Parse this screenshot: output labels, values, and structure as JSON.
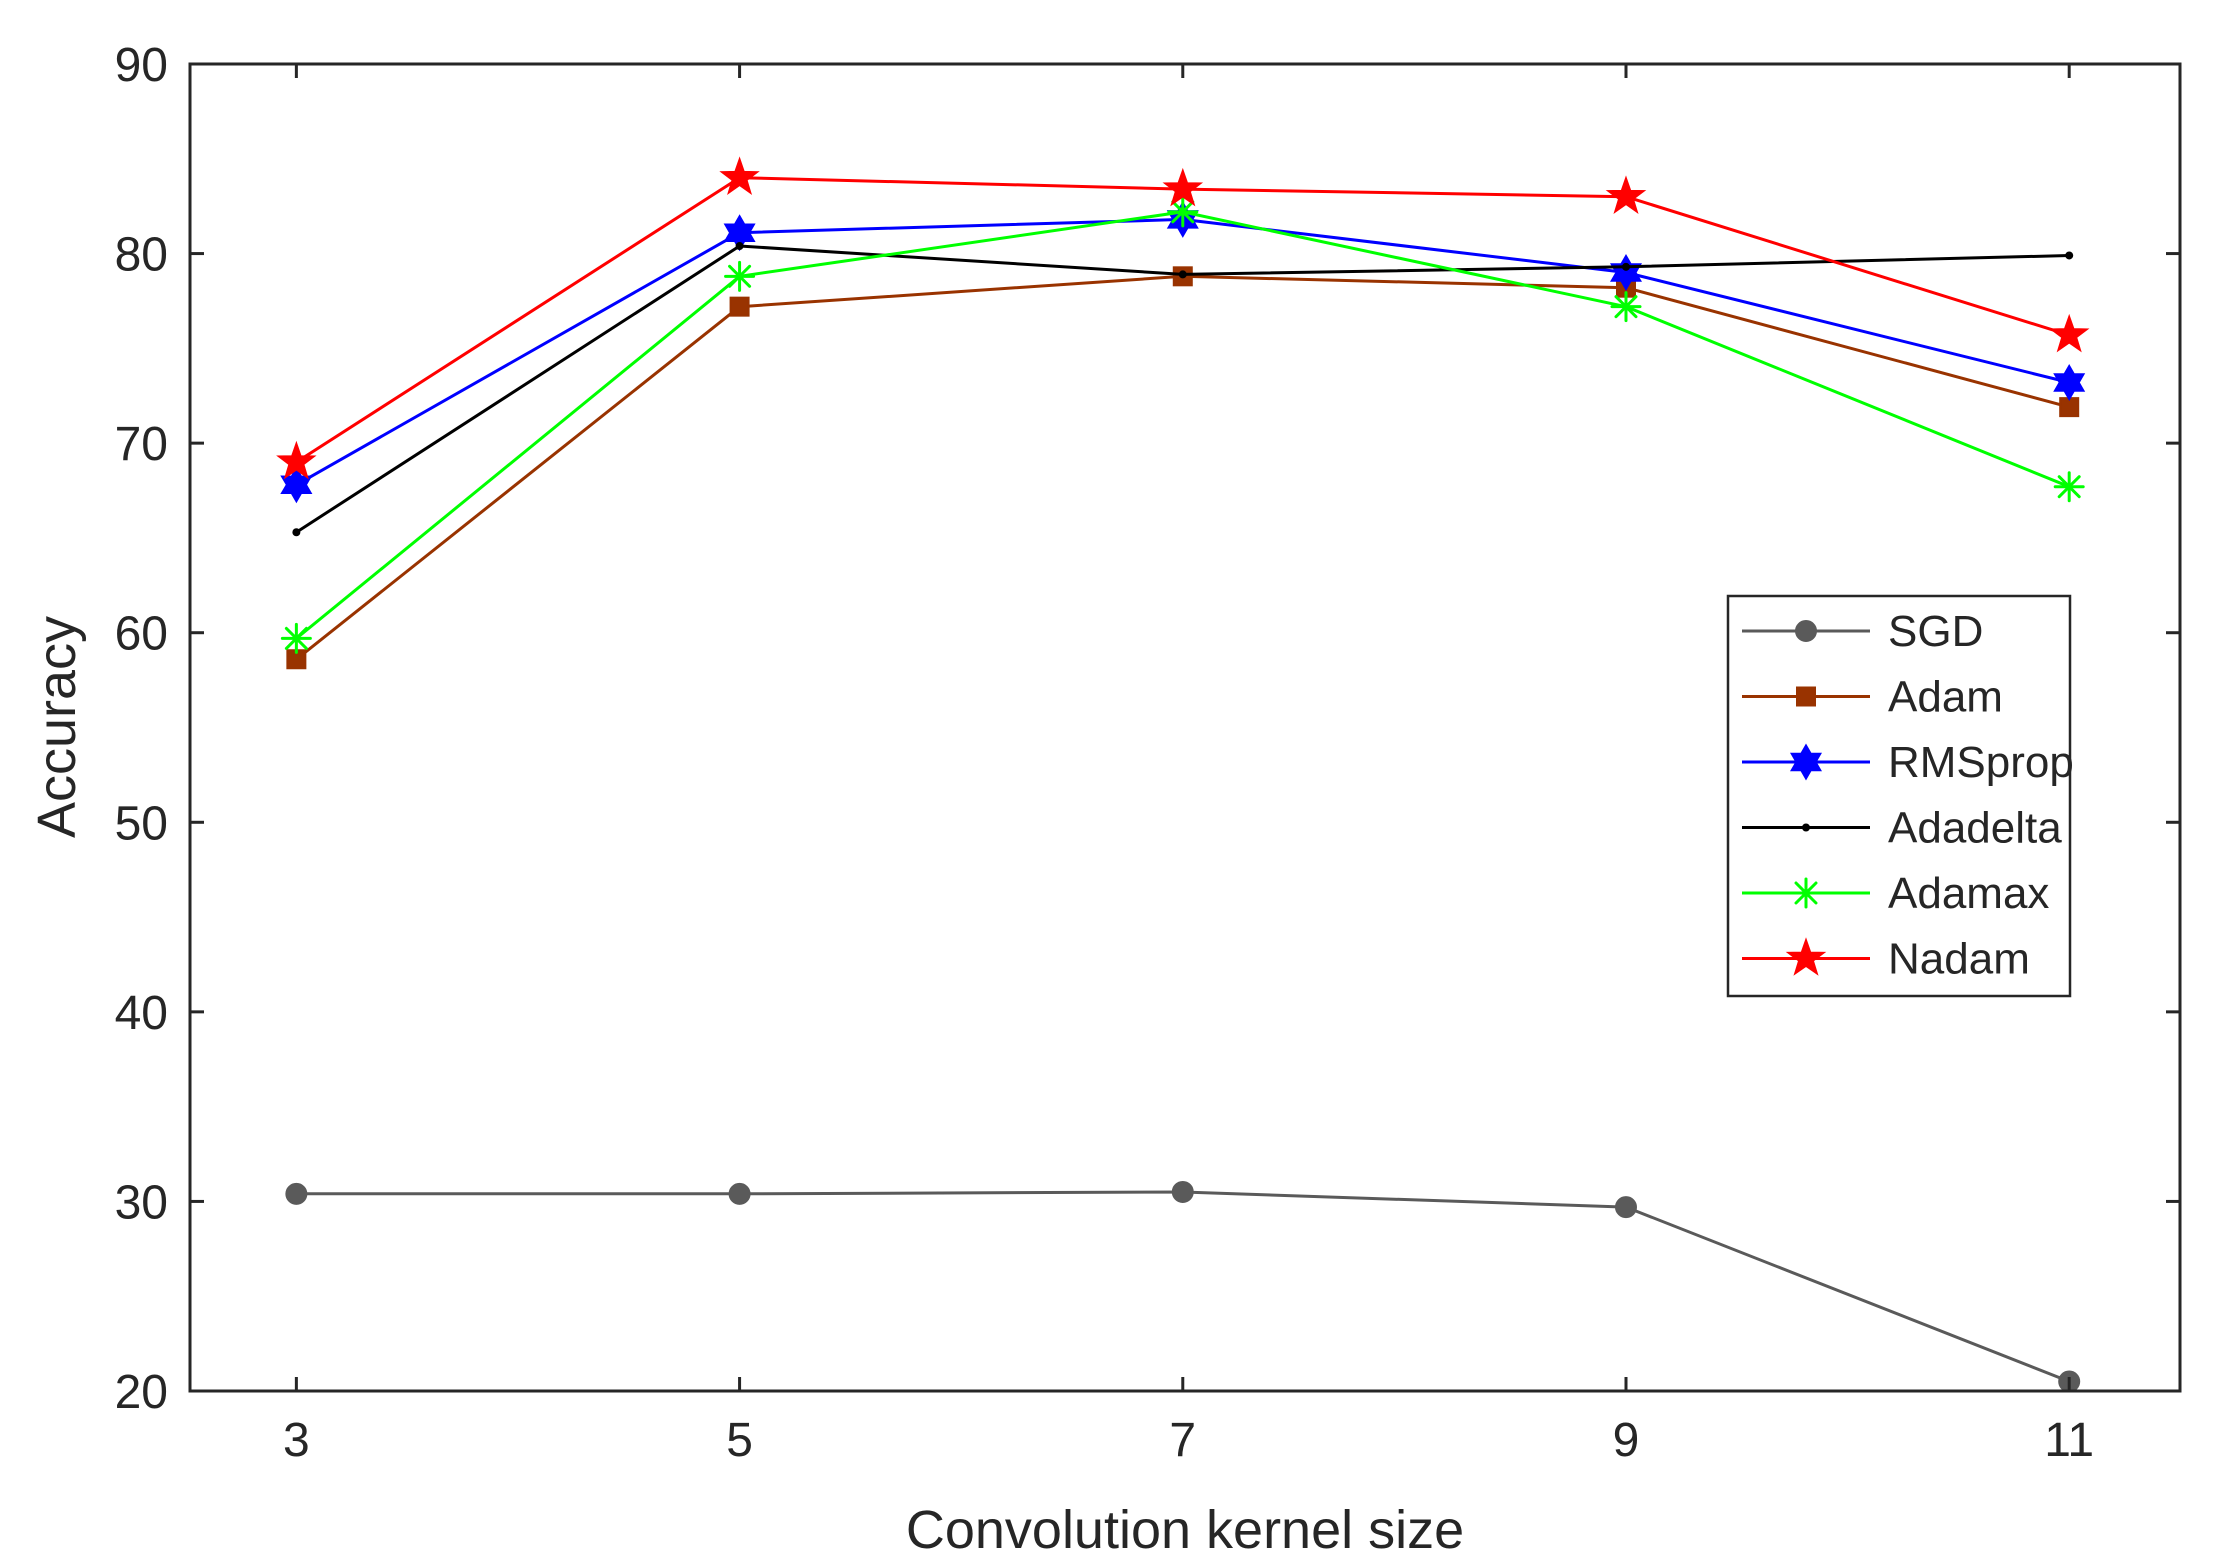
{
  "chart_data": {
    "type": "line",
    "title": "",
    "xlabel": "Convolution kernel size",
    "ylabel": "Accuracy",
    "x": [
      3,
      5,
      7,
      9,
      11
    ],
    "xlim": [
      2.52,
      11.5
    ],
    "ylim": [
      20,
      90
    ],
    "xticks": [
      3,
      5,
      7,
      9,
      11
    ],
    "yticks": [
      20,
      30,
      40,
      50,
      60,
      70,
      80,
      90
    ],
    "grid": false,
    "legend_position": "right",
    "series": [
      {
        "name": "SGD",
        "values": [
          30.4,
          30.4,
          30.5,
          29.7,
          20.5
        ],
        "color": "#5a5a5a",
        "marker": "circle"
      },
      {
        "name": "Adam",
        "values": [
          58.6,
          77.2,
          78.8,
          78.2,
          71.9
        ],
        "color": "#993300",
        "marker": "square"
      },
      {
        "name": "RMSprop",
        "values": [
          67.8,
          81.1,
          81.8,
          79.0,
          73.2
        ],
        "color": "#0000ff",
        "marker": "hexagram"
      },
      {
        "name": "Adadelta",
        "values": [
          65.3,
          80.4,
          78.9,
          79.3,
          79.9
        ],
        "color": "#000000",
        "marker": "point"
      },
      {
        "name": "Adamax",
        "values": [
          59.7,
          78.8,
          82.2,
          77.2,
          67.7
        ],
        "color": "#00ff00",
        "marker": "asterisk"
      },
      {
        "name": "Nadam",
        "values": [
          69.0,
          84.0,
          83.4,
          83.0,
          75.7
        ],
        "color": "#ff0000",
        "marker": "pentagram"
      }
    ]
  }
}
